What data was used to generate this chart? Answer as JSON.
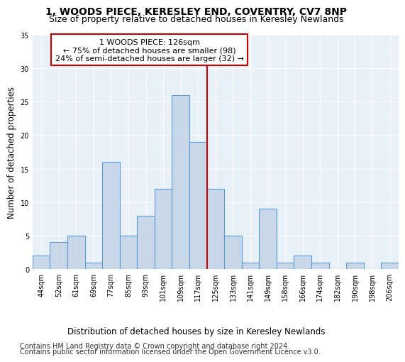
{
  "title": "1, WOODS PIECE, KERESLEY END, COVENTRY, CV7 8NP",
  "subtitle": "Size of property relative to detached houses in Keresley Newlands",
  "xlabel_bottom": "Distribution of detached houses by size in Keresley Newlands",
  "ylabel": "Number of detached properties",
  "categories": [
    "44sqm",
    "52sqm",
    "61sqm",
    "69sqm",
    "77sqm",
    "85sqm",
    "93sqm",
    "101sqm",
    "109sqm",
    "117sqm",
    "125sqm",
    "133sqm",
    "141sqm",
    "149sqm",
    "158sqm",
    "166sqm",
    "174sqm",
    "182sqm",
    "190sqm",
    "198sqm",
    "206sqm"
  ],
  "values": [
    2,
    4,
    5,
    1,
    16,
    5,
    8,
    12,
    26,
    19,
    12,
    5,
    1,
    9,
    1,
    2,
    1,
    0,
    1,
    0,
    1
  ],
  "bar_color": "#c8d8e8",
  "bar_edge_color": "#5b9bd5",
  "vline_color": "#cc0000",
  "annotation_text": "1 WOODS PIECE: 126sqm\n← 75% of detached houses are smaller (98)\n24% of semi-detached houses are larger (32) →",
  "annotation_box_color": "#ffffff",
  "annotation_box_edge": "#cc0000",
  "ylim": [
    0,
    35
  ],
  "yticks": [
    0,
    5,
    10,
    15,
    20,
    25,
    30,
    35
  ],
  "background_color": "#e8f0f8",
  "grid_color": "#ffffff",
  "footer1": "Contains HM Land Registry data © Crown copyright and database right 2024.",
  "footer2": "Contains public sector information licensed under the Open Government Licence v3.0.",
  "title_fontsize": 10,
  "subtitle_fontsize": 9,
  "tick_fontsize": 7,
  "ylabel_fontsize": 8.5,
  "footer_fontsize": 7,
  "annot_fontsize": 8
}
